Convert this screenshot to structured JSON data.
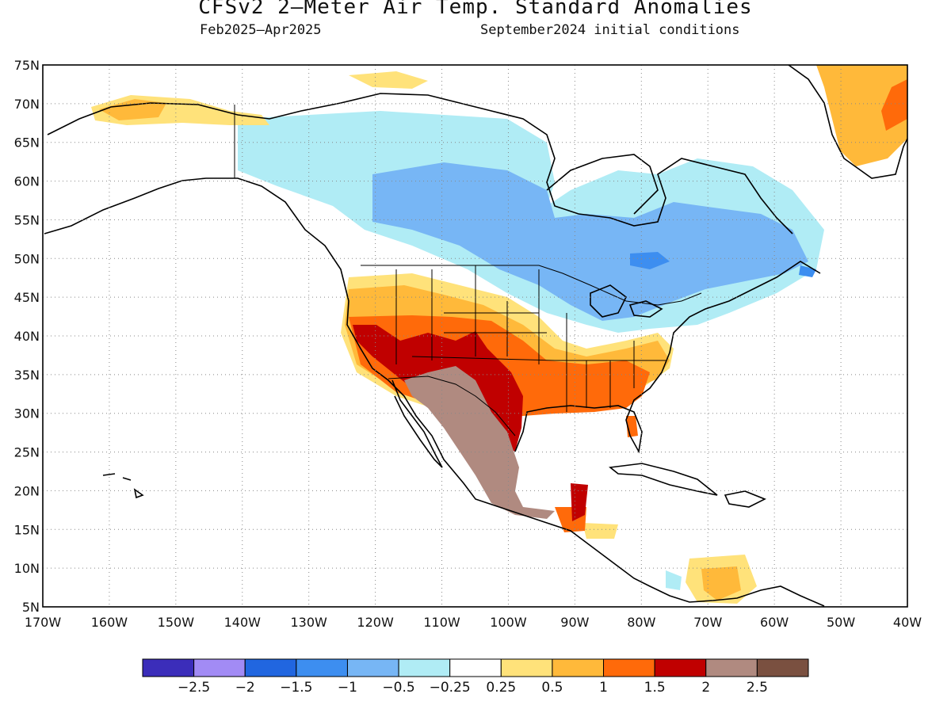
{
  "title": "CFSv2 2–Meter Air Temp. Standard Anomalies",
  "subtitle_left": "Feb2025–Apr2025",
  "subtitle_right": "September2024 initial conditions",
  "map": {
    "lon_range": [
      -170,
      -40
    ],
    "lat_range": [
      5,
      75
    ],
    "lon_ticks": [
      "170W",
      "160W",
      "150W",
      "140W",
      "130W",
      "120W",
      "110W",
      "100W",
      "90W",
      "80W",
      "70W",
      "60W",
      "50W",
      "40W"
    ],
    "lat_ticks": [
      "5N",
      "10N",
      "15N",
      "20N",
      "25N",
      "30N",
      "35N",
      "40N",
      "45N",
      "50N",
      "55N",
      "60N",
      "65N",
      "70N",
      "75N"
    ],
    "grid": "dotted"
  },
  "colorbar": {
    "colors": [
      "#3b2dba",
      "#a28bf5",
      "#2166e0",
      "#3d8ef0",
      "#77b6f5",
      "#b0ecf5",
      "#ffffff",
      "#ffe27a",
      "#ffb93a",
      "#ff6a0a",
      "#c00000",
      "#b08a80",
      "#7a5040"
    ],
    "labels": [
      "−2.5",
      "−2",
      "−1.5",
      "−1",
      "−0.5",
      "−0.25",
      "0.25",
      "0.5",
      "1",
      "1.5",
      "2",
      "2.5"
    ]
  }
}
